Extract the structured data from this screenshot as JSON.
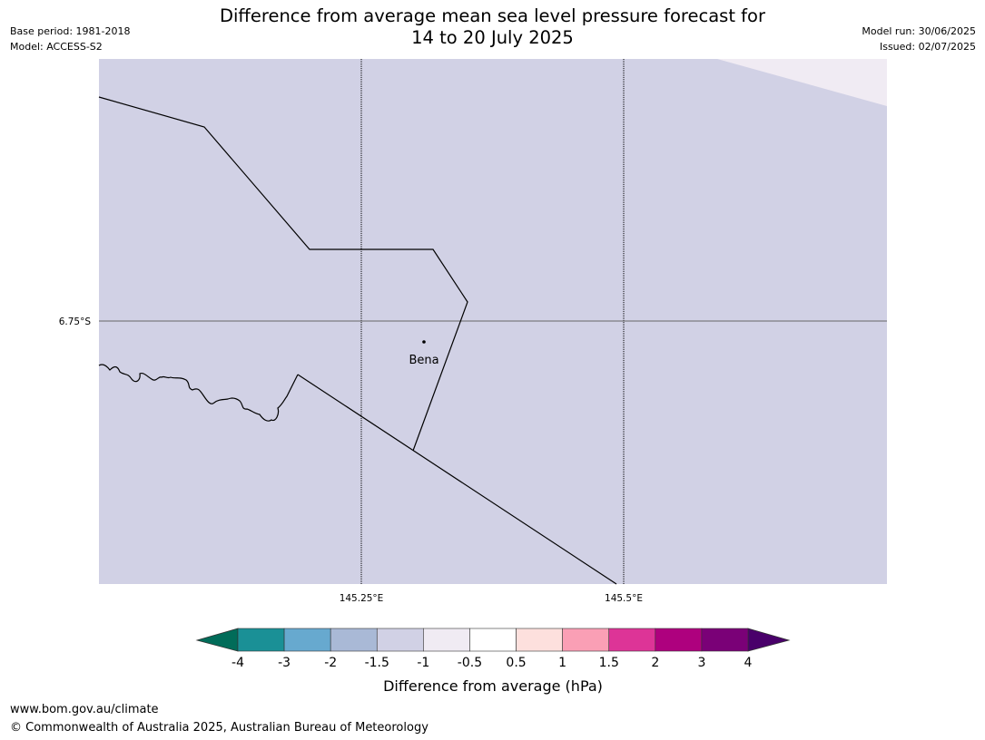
{
  "title": {
    "line1": "Difference from average mean sea level pressure forecast for",
    "line2": "14 to 20 July 2025"
  },
  "meta_left": {
    "base_period": "Base period: 1981-2018",
    "model": "Model: ACCESS-S2"
  },
  "meta_right": {
    "model_run": "Model run: 30/06/2025",
    "issued": "Issued: 02/07/2025"
  },
  "map": {
    "lat_label": "6.75°S",
    "lon_labels": [
      "145.25°E",
      "145.5°E"
    ],
    "place": "Bena",
    "background_color": "#d1d1e5",
    "corner_color": "#f0ebf3"
  },
  "legend": {
    "ticks": [
      "-4",
      "-3",
      "-2",
      "-1.5",
      "-1",
      "-0.5",
      "0.5",
      "1",
      "1.5",
      "2",
      "3",
      "4"
    ],
    "colors": [
      "#1a9096",
      "#67a9cf",
      "#a9b9d6",
      "#d1d1e5",
      "#f0ebf3",
      "#ffffff",
      "#fde0dd",
      "#fa9fb5",
      "#dd3497",
      "#ae017e",
      "#7a0177"
    ],
    "low_extend_color": "#016c59",
    "high_extend_color": "#49006a",
    "label": "Difference from average (hPa)"
  },
  "footer": {
    "url": "www.bom.gov.au/climate",
    "copyright": "© Commonwealth of Australia 2025, Australian Bureau of Meteorology"
  }
}
